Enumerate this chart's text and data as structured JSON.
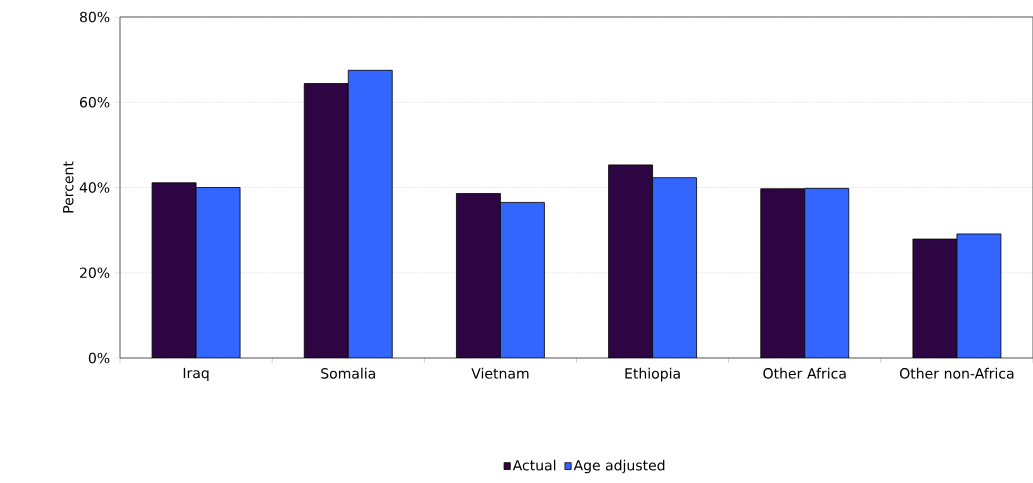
{
  "chart_data": {
    "type": "bar",
    "ylabel": "Percent",
    "categories": [
      "Iraq",
      "Somalia",
      "Vietnam",
      "Ethiopia",
      "Other Africa",
      "Other non-Africa"
    ],
    "series": [
      {
        "name": "Actual",
        "color": "#2e0543",
        "values": [
          41.1,
          64.4,
          38.6,
          45.3,
          39.7,
          27.9
        ]
      },
      {
        "name": "Age adjusted",
        "color": "#3366ff",
        "values": [
          40.0,
          67.5,
          36.5,
          42.3,
          39.8,
          29.1
        ]
      }
    ],
    "ylim": [
      0,
      80
    ],
    "yticks": [
      {
        "value": 0,
        "label": "0%"
      },
      {
        "value": 20,
        "label": "20%"
      },
      {
        "value": 40,
        "label": "40%"
      },
      {
        "value": 60,
        "label": "60%"
      },
      {
        "value": 80,
        "label": "80%"
      }
    ],
    "grid": "y",
    "legend": "bottom"
  }
}
